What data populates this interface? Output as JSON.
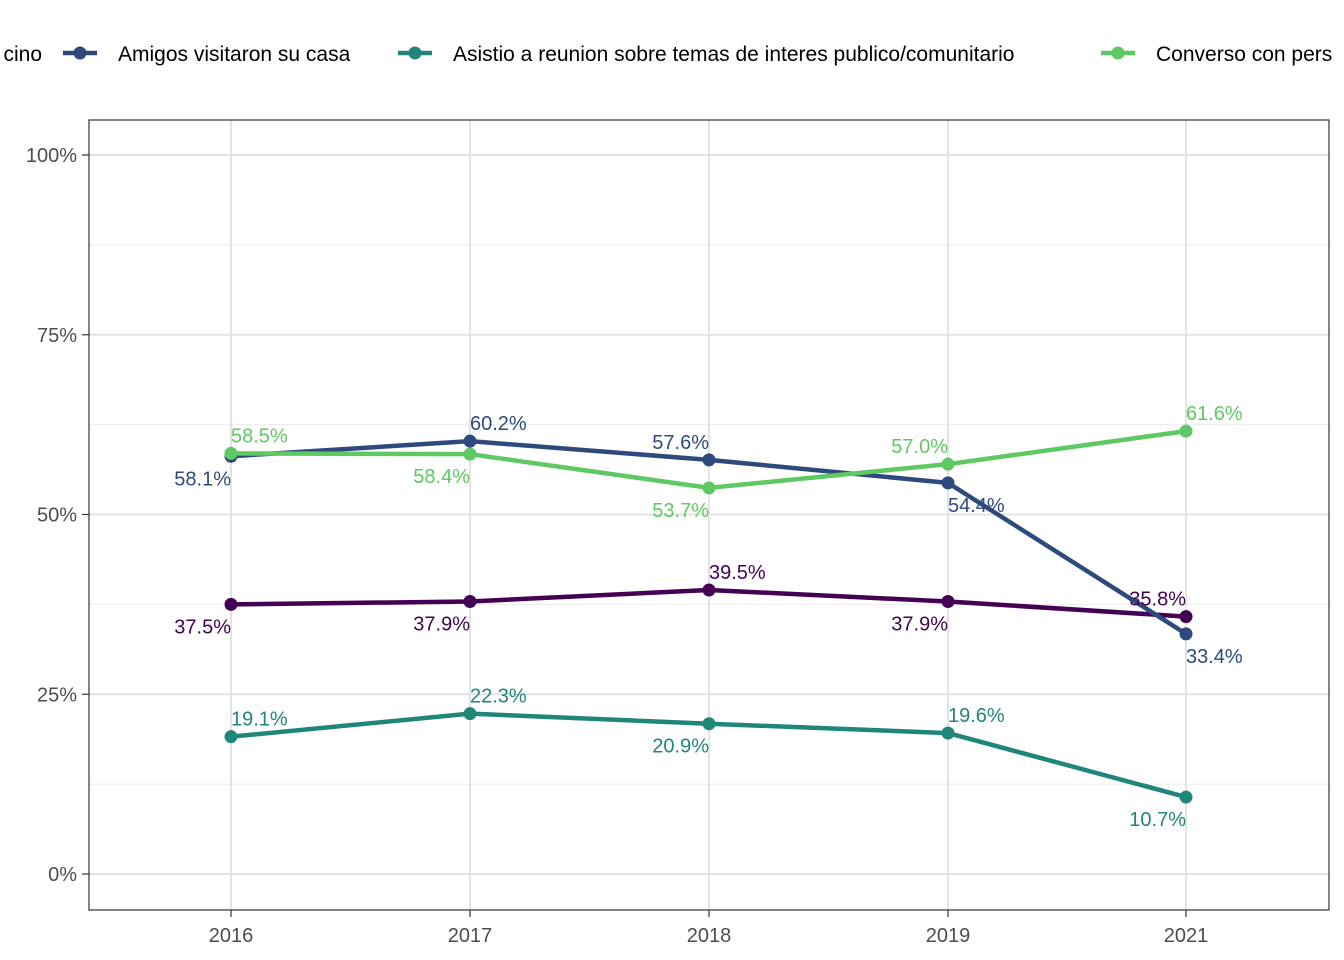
{
  "chart_data": {
    "type": "line",
    "categories": [
      "2016",
      "2017",
      "2018",
      "2019",
      "2021"
    ],
    "ylim": [
      0,
      100
    ],
    "yticks": [
      0,
      25,
      50,
      75,
      100
    ],
    "ytick_labels": [
      "0%",
      "25%",
      "50%",
      "75%",
      "100%"
    ],
    "grid": true,
    "legend_position": "top",
    "title": "",
    "xlabel": "",
    "ylabel": "",
    "series": [
      {
        "name": "…cino",
        "legend_label": "cino",
        "color": "#440154",
        "values": [
          37.5,
          37.9,
          39.5,
          37.9,
          35.8
        ],
        "labels": [
          "37.5%",
          "37.9%",
          "39.5%",
          "37.9%",
          "35.8%"
        ],
        "label_pos": [
          "below-left",
          "below-left",
          "above-right",
          "below-left",
          "above-left"
        ]
      },
      {
        "name": "Amigos visitaron su casa",
        "color": "#2e4a7d",
        "values": [
          58.1,
          60.2,
          57.6,
          54.4,
          33.4
        ],
        "labels": [
          "58.1%",
          "60.2%",
          "57.6%",
          "54.4%",
          "33.4%"
        ],
        "label_pos": [
          "below-left",
          "above-right",
          "above-left",
          "below-right",
          "below-right"
        ]
      },
      {
        "name": "Asistio a reunion sobre temas de interes publico/comunitario",
        "color": "#21867a",
        "values": [
          19.1,
          22.3,
          20.9,
          19.6,
          10.7
        ],
        "labels": [
          "19.1%",
          "22.3%",
          "20.9%",
          "19.6%",
          "10.7%"
        ],
        "label_pos": [
          "above-right",
          "above-right",
          "below-left",
          "above-right",
          "below-left"
        ]
      },
      {
        "name": "Converso con pers…",
        "legend_label": "Converso con pers",
        "color": "#5ec962",
        "values": [
          58.5,
          58.4,
          53.7,
          57.0,
          61.6
        ],
        "labels": [
          "58.5%",
          "58.4%",
          "53.7%",
          "57.0%",
          "61.6%"
        ],
        "label_pos": [
          "above-right",
          "below-left",
          "below-left",
          "above-left",
          "above-right"
        ]
      }
    ]
  }
}
